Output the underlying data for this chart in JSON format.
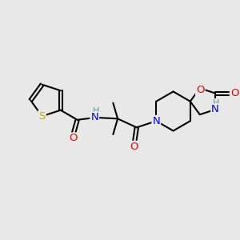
{
  "bg_color": "#e8e8e8",
  "bond_color": "#000000",
  "bond_width": 1.5,
  "atom_colors": {
    "S": "#ccaa00",
    "N": "#0000ee",
    "O": "#ee0000",
    "H": "#4a9a9a",
    "C": "#000000"
  },
  "font_size": 8.5,
  "xlim": [
    0,
    10
  ],
  "ylim": [
    0,
    10
  ]
}
